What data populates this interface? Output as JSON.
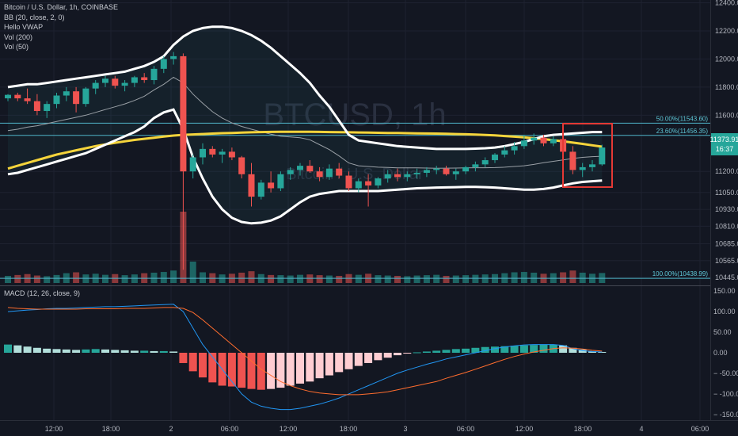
{
  "legend": {
    "symbol": "Bitcoin / U.S. Dollar, 1h, COINBASE",
    "bb": "BB (20, close, 2, 0)",
    "vwap": "Hello VWAP",
    "vol200": "Vol (200)",
    "vol50": "Vol (50)"
  },
  "watermark": {
    "ticker": "BTCUSD, 1h",
    "name": "Bitcoin / U.S. Dollar"
  },
  "colors": {
    "up": "#26a69a",
    "down": "#ef5350",
    "bb": "#ffffff",
    "ma": "#f5d43b",
    "fib": "#4fb5c9",
    "macd": "#2196f3",
    "signal": "#ff6d2e",
    "highlight": "#e53935"
  },
  "price_axis": {
    "ticks": [
      12400,
      12200,
      12000,
      11800,
      11600,
      11200,
      11050,
      10930,
      10810,
      10685,
      10565,
      10445
    ],
    "last_price_label": "11373.91",
    "countdown_label": "16:37"
  },
  "fib_levels": [
    {
      "value": 11543.6,
      "label": "50.00%(11543.60)"
    },
    {
      "value": 11456.35,
      "label": "23.60%(11456.35)"
    },
    {
      "value": 10438.99,
      "label": "100.00%(10438.99)"
    }
  ],
  "time_axis": {
    "labels": [
      "12:00",
      "18:00",
      "2",
      "06:00",
      "12:00",
      "18:00",
      "3",
      "06:00",
      "12:00",
      "18:00",
      "4",
      "06:00"
    ]
  },
  "macd": {
    "legend": "MACD (12, 26, close, 9)",
    "ticks": [
      "150.00",
      "100.00",
      "50.00",
      "0.00",
      "− -50.00",
      "− -100.00",
      "− -150.00"
    ]
  },
  "chart_data": {
    "type": "candlestick",
    "candles": [
      [
        11720,
        11750,
        11700,
        11745
      ],
      [
        11745,
        11760,
        11700,
        11720
      ],
      [
        11720,
        11790,
        11680,
        11700
      ],
      [
        11700,
        11750,
        11600,
        11630
      ],
      [
        11630,
        11700,
        11580,
        11680
      ],
      [
        11680,
        11760,
        11650,
        11740
      ],
      [
        11740,
        11800,
        11700,
        11770
      ],
      [
        11770,
        11800,
        11620,
        11680
      ],
      [
        11680,
        11800,
        11660,
        11790
      ],
      [
        11790,
        11850,
        11750,
        11830
      ],
      [
        11830,
        11880,
        11800,
        11860
      ],
      [
        11860,
        11880,
        11790,
        11810
      ],
      [
        11810,
        11850,
        11770,
        11830
      ],
      [
        11830,
        11880,
        11800,
        11870
      ],
      [
        11870,
        11900,
        11830,
        11850
      ],
      [
        11850,
        11950,
        11820,
        11930
      ],
      [
        11930,
        12020,
        11900,
        12000
      ],
      [
        12000,
        12050,
        11960,
        12020
      ],
      [
        12020,
        12040,
        10500,
        11200
      ],
      [
        11200,
        11320,
        11150,
        11300
      ],
      [
        11300,
        11400,
        11250,
        11360
      ],
      [
        11360,
        11380,
        11300,
        11320
      ],
      [
        11320,
        11360,
        11260,
        11340
      ],
      [
        11340,
        11370,
        11280,
        11300
      ],
      [
        11300,
        11310,
        11150,
        11180
      ],
      [
        11180,
        11260,
        10950,
        11020
      ],
      [
        11020,
        11140,
        11000,
        11120
      ],
      [
        11120,
        11200,
        11050,
        11080
      ],
      [
        11080,
        11200,
        11060,
        11180
      ],
      [
        11180,
        11230,
        11140,
        11210
      ],
      [
        11210,
        11260,
        11170,
        11240
      ],
      [
        11240,
        11280,
        11190,
        11200
      ],
      [
        11200,
        11230,
        11130,
        11160
      ],
      [
        11160,
        11250,
        11140,
        11220
      ],
      [
        11220,
        11260,
        11150,
        11170
      ],
      [
        11170,
        11200,
        11060,
        11080
      ],
      [
        11080,
        11150,
        11050,
        11130
      ],
      [
        11130,
        11180,
        10950,
        11100
      ],
      [
        11100,
        11160,
        11080,
        11150
      ],
      [
        11150,
        11210,
        11120,
        11180
      ],
      [
        11180,
        11220,
        11130,
        11160
      ],
      [
        11160,
        11200,
        11130,
        11180
      ],
      [
        11180,
        11220,
        11150,
        11190
      ],
      [
        11190,
        11230,
        11160,
        11210
      ],
      [
        11210,
        11240,
        11180,
        11220
      ],
      [
        11220,
        11240,
        11170,
        11180
      ],
      [
        11180,
        11220,
        11140,
        11200
      ],
      [
        11200,
        11240,
        11180,
        11230
      ],
      [
        11230,
        11270,
        11200,
        11250
      ],
      [
        11250,
        11300,
        11230,
        11280
      ],
      [
        11280,
        11330,
        11260,
        11320
      ],
      [
        11320,
        11380,
        11300,
        11350
      ],
      [
        11350,
        11410,
        11320,
        11380
      ],
      [
        11380,
        11460,
        11360,
        11420
      ],
      [
        11420,
        11470,
        11390,
        11440
      ],
      [
        11440,
        11460,
        11380,
        11400
      ],
      [
        11400,
        11450,
        11380,
        11430
      ],
      [
        11430,
        11450,
        11320,
        11340
      ],
      [
        11340,
        11380,
        11180,
        11210
      ],
      [
        11210,
        11260,
        11160,
        11230
      ],
      [
        11230,
        11280,
        11200,
        11250
      ],
      [
        11250,
        11390,
        11240,
        11370
      ]
    ],
    "volume": [
      40,
      45,
      50,
      42,
      38,
      45,
      55,
      60,
      48,
      52,
      46,
      50,
      44,
      48,
      55,
      58,
      62,
      70,
      400,
      120,
      60,
      55,
      48,
      52,
      58,
      66,
      50,
      45,
      44,
      42,
      46,
      48,
      44,
      42,
      40,
      50,
      46,
      52,
      44,
      42,
      40,
      38,
      42,
      44,
      46,
      40,
      42,
      44,
      46,
      48,
      50,
      55,
      60,
      62,
      58,
      52,
      55,
      60,
      70,
      58,
      52,
      56
    ],
    "macd_histogram": [
      20,
      18,
      15,
      12,
      10,
      9,
      8,
      7,
      8,
      9,
      8,
      7,
      6,
      5,
      5,
      4,
      4,
      3,
      -25,
      -45,
      -60,
      -72,
      -80,
      -82,
      -85,
      -88,
      -90,
      -88,
      -85,
      -80,
      -75,
      -70,
      -62,
      -55,
      -47,
      -40,
      -32,
      -25,
      -18,
      -12,
      -6,
      -2,
      1,
      3,
      5,
      7,
      9,
      10,
      12,
      14,
      15,
      16,
      17,
      18,
      19,
      20,
      20,
      18,
      12,
      8,
      4,
      2
    ],
    "macd_line": [
      100,
      102,
      104,
      105,
      107,
      108,
      108,
      109,
      110,
      111,
      112,
      112,
      113,
      114,
      115,
      116,
      117,
      118,
      100,
      60,
      20,
      -10,
      -40,
      -70,
      -100,
      -120,
      -130,
      -135,
      -138,
      -138,
      -135,
      -130,
      -125,
      -118,
      -110,
      -100,
      -90,
      -80,
      -70,
      -60,
      -50,
      -42,
      -35,
      -28,
      -22,
      -15,
      -10,
      -5,
      0,
      5,
      10,
      14,
      17,
      19,
      20,
      20,
      20,
      18,
      10,
      5,
      3,
      2
    ],
    "signal_line": [
      110,
      108,
      107,
      106,
      106,
      106,
      106,
      106,
      107,
      107,
      107,
      107,
      108,
      108,
      108,
      109,
      110,
      110,
      108,
      98,
      80,
      60,
      40,
      20,
      0,
      -20,
      -40,
      -55,
      -70,
      -80,
      -88,
      -94,
      -98,
      -100,
      -102,
      -102,
      -102,
      -100,
      -98,
      -95,
      -90,
      -85,
      -80,
      -75,
      -70,
      -62,
      -55,
      -48,
      -40,
      -32,
      -24,
      -16,
      -9,
      -3,
      2,
      6,
      10,
      12,
      11,
      9,
      6,
      4
    ],
    "bb_upper": [
      11800,
      11810,
      11820,
      11820,
      11830,
      11840,
      11850,
      11860,
      11870,
      11880,
      11890,
      11900,
      11910,
      11930,
      11950,
      11980,
      12020,
      12100,
      12160,
      12200,
      12220,
      12230,
      12230,
      12220,
      12200,
      12170,
      12130,
      12080,
      12020,
      11960,
      11900,
      11830,
      11740,
      11660,
      11560,
      11460,
      11420,
      11410,
      11400,
      11390,
      11380,
      11375,
      11370,
      11365,
      11360,
      11360,
      11360,
      11360,
      11362,
      11365,
      11370,
      11380,
      11395,
      11410,
      11430,
      11450,
      11460,
      11465,
      11470,
      11475,
      11480,
      11480
    ],
    "bb_lower": [
      11180,
      11190,
      11210,
      11230,
      11250,
      11270,
      11290,
      11310,
      11330,
      11360,
      11390,
      11420,
      11450,
      11480,
      11520,
      11580,
      11620,
      11640,
      11500,
      11300,
      11150,
      11020,
      10930,
      10870,
      10840,
      10830,
      10835,
      10850,
      10880,
      10930,
      10980,
      11020,
      11040,
      11050,
      11060,
      11060,
      11060,
      11060,
      11060,
      11065,
      11070,
      11075,
      11080,
      11082,
      11085,
      11086,
      11088,
      11090,
      11090,
      11088,
      11085,
      11080,
      11075,
      11070,
      11070,
      11075,
      11085,
      11100,
      11115,
      11125,
      11130,
      11135
    ],
    "bb_middle": [
      11490,
      11500,
      11515,
      11525,
      11540,
      11555,
      11570,
      11585,
      11600,
      11620,
      11640,
      11660,
      11680,
      11705,
      11735,
      11780,
      11820,
      11870,
      11830,
      11750,
      11685,
      11625,
      11580,
      11545,
      11520,
      11500,
      11482,
      11465,
      11450,
      11445,
      11440,
      11425,
      11390,
      11355,
      11310,
      11260,
      11240,
      11235,
      11230,
      11228,
      11225,
      11225,
      11225,
      11224,
      11222,
      11223,
      11224,
      11225,
      11226,
      11226,
      11227,
      11230,
      11235,
      11240,
      11250,
      11262,
      11272,
      11282,
      11292,
      11300,
      11305,
      11308
    ],
    "ma_200": [
      11220,
      11240,
      11260,
      11280,
      11300,
      11320,
      11335,
      11350,
      11365,
      11380,
      11392,
      11404,
      11414,
      11424,
      11432,
      11440,
      11448,
      11455,
      11460,
      11463,
      11466,
      11469,
      11472,
      11474,
      11476,
      11478,
      11480,
      11481,
      11482,
      11482,
      11482,
      11482,
      11481,
      11480,
      11479,
      11478,
      11477,
      11476,
      11475,
      11474,
      11473,
      11472,
      11471,
      11470,
      11469,
      11468,
      11466,
      11464,
      11462,
      11459,
      11456,
      11452,
      11447,
      11442,
      11436,
      11430,
      11422,
      11414,
      11405,
      11396,
      11386,
      11376
    ],
    "price_range": [
      10400,
      12420
    ],
    "macd_range": [
      -160,
      160
    ]
  }
}
